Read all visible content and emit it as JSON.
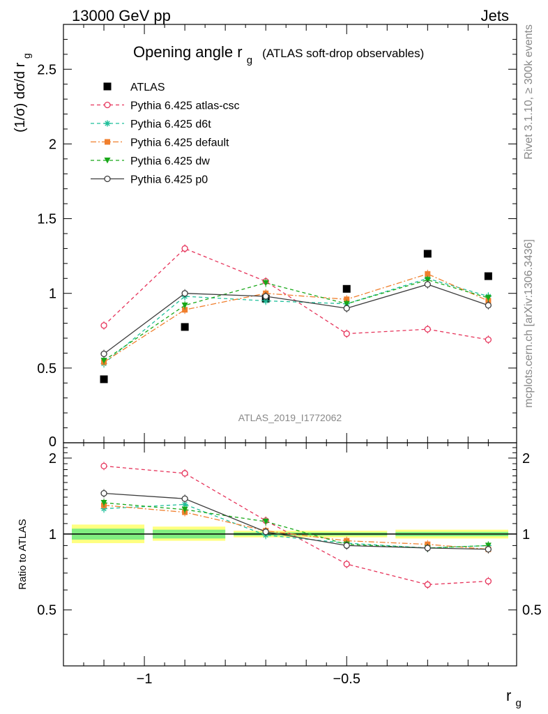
{
  "header": {
    "left": "13000 GeV pp",
    "right": "Jets"
  },
  "side_labels": {
    "rivet": "Rivet 3.1.10, ≥ 300k events",
    "mcplots": "mcplots.cern.ch [arXiv:1306.3436]"
  },
  "chart_data": [
    {
      "type": "scatter",
      "title_main": "Opening angle r",
      "title_sub": "g",
      "title_extra": "(ATLAS soft-drop observables)",
      "ylabel": "(1/σ) dσ/d r",
      "ylabel_sub": "g",
      "watermark": "ATLAS_2019_I1772062",
      "ylim": [
        0,
        2.8
      ],
      "yticks": [
        0.5,
        1,
        1.5,
        2,
        2.5
      ],
      "ytick_labels": [
        "0.5",
        "1",
        "1.5",
        "2",
        "2.5"
      ],
      "ytick_zero_label": "0",
      "grid": false,
      "legend_position": "top-left",
      "x": [
        -1.1,
        -0.9,
        -0.7,
        -0.5,
        -0.3,
        -0.15
      ],
      "series": [
        {
          "name": "ATLAS",
          "color": "#000000",
          "marker": "square",
          "line": "none",
          "values": [
            0.425,
            0.775,
            0.965,
            1.03,
            1.265,
            1.115
          ]
        },
        {
          "name": "Pythia 6.425 atlas-csc",
          "color": "#e6335a",
          "marker": "circle-open",
          "line": "dashed",
          "values": [
            0.785,
            1.3,
            1.08,
            0.73,
            0.76,
            0.69
          ]
        },
        {
          "name": "Pythia 6.425 d6t",
          "color": "#1fbf9a",
          "marker": "star",
          "line": "dashed",
          "values": [
            0.53,
            0.98,
            0.95,
            0.93,
            1.1,
            0.98
          ]
        },
        {
          "name": "Pythia 6.425 default",
          "color": "#f07f2d",
          "marker": "square-small",
          "line": "dashdot",
          "values": [
            0.54,
            0.89,
            1.0,
            0.96,
            1.13,
            0.95
          ]
        },
        {
          "name": "Pythia 6.425 dw",
          "color": "#18a818",
          "marker": "triangle-down",
          "line": "dashed",
          "values": [
            0.55,
            0.92,
            1.07,
            0.93,
            1.09,
            0.97
          ]
        },
        {
          "name": "Pythia 6.425 p0",
          "color": "#3c3c3c",
          "marker": "circle-open",
          "line": "solid",
          "values": [
            0.595,
            1.0,
            0.98,
            0.9,
            1.06,
            0.92
          ]
        }
      ]
    },
    {
      "type": "scatter",
      "ylabel": "Ratio to ATLAS",
      "xlabel": "r",
      "xlabel_sub": "g",
      "ylim": [
        0.3,
        2.3
      ],
      "yticks": [
        0.5,
        1,
        2
      ],
      "ytick_labels": [
        "0.5",
        "1",
        "2"
      ],
      "xlim": [
        -1.2,
        -0.08
      ],
      "xticks": [
        -1,
        -0.5
      ],
      "xtick_labels": [
        "−1",
        "−0.5"
      ],
      "reference_line": 1,
      "uncertainty_bands": [
        {
          "x": [
            -1.2,
            -1.0
          ],
          "inner": [
            0.95,
            1.05
          ],
          "outer": [
            0.92,
            1.09
          ]
        },
        {
          "x": [
            -1.0,
            -0.8
          ],
          "inner": [
            0.96,
            1.04
          ],
          "outer": [
            0.94,
            1.07
          ]
        },
        {
          "x": [
            -0.8,
            -0.4
          ],
          "inner": [
            0.985,
            1.015
          ],
          "outer": [
            0.97,
            1.03
          ]
        },
        {
          "x": [
            -0.4,
            -0.08
          ],
          "inner": [
            0.98,
            1.02
          ],
          "outer": [
            0.96,
            1.04
          ]
        }
      ],
      "x": [
        -1.1,
        -0.9,
        -0.7,
        -0.5,
        -0.3,
        -0.15
      ],
      "series": [
        {
          "name": "Pythia 6.425 atlas-csc",
          "color": "#e6335a",
          "marker": "circle-open",
          "line": "dashed",
          "values": [
            1.86,
            1.74,
            1.13,
            0.76,
            0.63,
            0.65
          ]
        },
        {
          "name": "Pythia 6.425 d6t",
          "color": "#1fbf9a",
          "marker": "star",
          "line": "dashed",
          "values": [
            1.26,
            1.31,
            0.99,
            0.92,
            0.88,
            0.9
          ]
        },
        {
          "name": "Pythia 6.425 default",
          "color": "#f07f2d",
          "marker": "square-small",
          "line": "dashdot",
          "values": [
            1.3,
            1.22,
            1.03,
            0.94,
            0.91,
            0.87
          ]
        },
        {
          "name": "Pythia 6.425 dw",
          "color": "#18a818",
          "marker": "triangle-down",
          "line": "dashed",
          "values": [
            1.33,
            1.25,
            1.12,
            0.91,
            0.88,
            0.9
          ]
        },
        {
          "name": "Pythia 6.425 p0",
          "color": "#3c3c3c",
          "marker": "circle-open",
          "line": "solid",
          "values": [
            1.45,
            1.38,
            1.02,
            0.9,
            0.88,
            0.87
          ]
        }
      ]
    }
  ]
}
